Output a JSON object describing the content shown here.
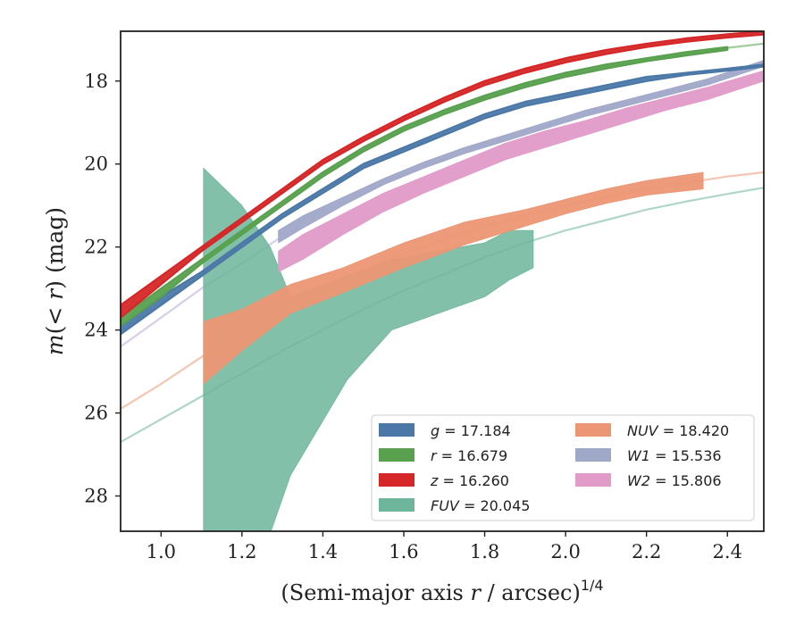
{
  "chart_data": {
    "type": "area",
    "xlabel": "(Semi-major axis r / arcsec)^1/4",
    "ylabel": "m(< r) (mag)",
    "xlim": [
      0.9,
      2.49
    ],
    "ylim": [
      28.85,
      16.8
    ],
    "y_inverted": true,
    "grid": false,
    "legend_position": "lower-right",
    "xticks": [
      "1.0",
      "1.2",
      "1.4",
      "1.6",
      "1.8",
      "2.0",
      "2.2",
      "2.4"
    ],
    "yticks": [
      "18",
      "20",
      "22",
      "24",
      "26",
      "28"
    ],
    "series": [
      {
        "name": "g",
        "label": "g = 17.184",
        "total_mag": 17.184,
        "color": "#4c78a8",
        "band_x": [
          0.9,
          1.0,
          1.1,
          1.2,
          1.3,
          1.4,
          1.5,
          1.6,
          1.7,
          1.8,
          1.9,
          2.0,
          2.1,
          2.2,
          2.3,
          2.4,
          2.49
        ],
        "band_lo": [
          23.9,
          23.2,
          22.6,
          21.9,
          21.2,
          20.6,
          20.0,
          19.6,
          19.2,
          18.8,
          18.5,
          18.3,
          18.1,
          17.9,
          17.8,
          17.7,
          17.6
        ],
        "band_hi": [
          24.1,
          23.4,
          22.7,
          22.0,
          21.3,
          20.7,
          20.1,
          19.7,
          19.3,
          18.9,
          18.6,
          18.4,
          18.2,
          18.0,
          17.85,
          17.75,
          17.65
        ],
        "faint_x": [],
        "faint_y": []
      },
      {
        "name": "r",
        "label": "r = 16.679",
        "total_mag": 16.679,
        "color": "#59a14f",
        "band_x": [
          0.9,
          1.0,
          1.1,
          1.2,
          1.3,
          1.4,
          1.5,
          1.6,
          1.7,
          1.8,
          1.9,
          2.0,
          2.1,
          2.2,
          2.3,
          2.4
        ],
        "band_lo": [
          23.7,
          23.0,
          22.3,
          21.6,
          20.9,
          20.2,
          19.6,
          19.1,
          18.7,
          18.35,
          18.05,
          17.8,
          17.6,
          17.45,
          17.3,
          17.18
        ],
        "band_hi": [
          23.9,
          23.2,
          22.4,
          21.7,
          21.0,
          20.3,
          19.7,
          19.2,
          18.8,
          18.45,
          18.15,
          17.9,
          17.7,
          17.52,
          17.38,
          17.25
        ],
        "faint_x": [
          2.4,
          2.49
        ],
        "faint_y": [
          17.2,
          17.1
        ]
      },
      {
        "name": "z",
        "label": "z = 16.260",
        "total_mag": 16.26,
        "color": "#d62728",
        "band_x": [
          0.9,
          1.0,
          1.1,
          1.2,
          1.3,
          1.4,
          1.5,
          1.6,
          1.7,
          1.8,
          1.9,
          2.0,
          2.1,
          2.2,
          2.3,
          2.4,
          2.49
        ],
        "band_lo": [
          23.4,
          22.7,
          22.0,
          21.3,
          20.6,
          19.9,
          19.35,
          18.85,
          18.4,
          18.0,
          17.7,
          17.45,
          17.25,
          17.1,
          16.97,
          16.87,
          16.8
        ],
        "band_hi": [
          23.7,
          22.9,
          22.1,
          21.4,
          20.7,
          20.0,
          19.45,
          18.95,
          18.5,
          18.1,
          17.8,
          17.55,
          17.35,
          17.18,
          17.05,
          16.95,
          16.88
        ],
        "faint_x": [],
        "faint_y": []
      },
      {
        "name": "FUV",
        "label": "FUV = 20.045",
        "total_mag": 20.045,
        "color": "#6db59b",
        "band_x": [
          1.105,
          1.2,
          1.27,
          1.32,
          1.46,
          1.57,
          1.8,
          1.86,
          1.92
        ],
        "band_lo": [
          20.1,
          21.0,
          22.0,
          23.2,
          22.7,
          22.3,
          21.9,
          21.6,
          21.6
        ],
        "band_hi": [
          28.9,
          28.9,
          28.9,
          27.5,
          25.2,
          24.0,
          23.2,
          22.8,
          22.5
        ],
        "faint_x": [
          0.9,
          1.0,
          1.1,
          1.2,
          1.3,
          1.4,
          1.5,
          1.6,
          1.7,
          1.8,
          1.9,
          2.0,
          2.1,
          2.2,
          2.3,
          2.4,
          2.49
        ],
        "faint_y": [
          26.7,
          26.15,
          25.6,
          25.05,
          24.5,
          24.0,
          23.5,
          23.05,
          22.65,
          22.25,
          21.9,
          21.6,
          21.35,
          21.1,
          20.9,
          20.72,
          20.57
        ]
      },
      {
        "name": "NUV",
        "label": "NUV = 18.420",
        "total_mag": 18.42,
        "color": "#ec9673",
        "band_x": [
          1.105,
          1.2,
          1.32,
          1.45,
          1.6,
          1.75,
          1.9,
          2.0,
          2.1,
          2.2,
          2.34
        ],
        "band_lo": [
          23.8,
          23.5,
          22.9,
          22.5,
          21.9,
          21.4,
          21.1,
          20.85,
          20.6,
          20.4,
          20.2
        ],
        "band_hi": [
          25.3,
          24.5,
          23.6,
          23.1,
          22.5,
          21.95,
          21.5,
          21.2,
          20.95,
          20.75,
          20.6
        ],
        "faint_x": [
          0.9,
          1.0,
          1.1,
          1.2,
          1.3,
          1.4,
          1.5,
          1.6,
          1.7,
          1.8,
          1.9,
          2.0,
          2.1,
          2.2,
          2.3,
          2.4,
          2.49
        ],
        "faint_y": [
          25.9,
          25.3,
          24.65,
          24.05,
          23.5,
          23.0,
          22.55,
          22.15,
          21.8,
          21.5,
          21.25,
          21.0,
          20.8,
          20.6,
          20.45,
          20.3,
          20.2
        ]
      },
      {
        "name": "W1",
        "label": "W1 = 15.536",
        "total_mag": 15.536,
        "color": "#a0a8c8",
        "band_x": [
          1.29,
          1.35,
          1.45,
          1.55,
          1.65,
          1.75,
          1.85,
          1.95,
          2.05,
          2.15,
          2.25,
          2.35,
          2.49
        ],
        "band_lo": [
          21.6,
          21.25,
          20.8,
          20.35,
          19.95,
          19.6,
          19.3,
          19.0,
          18.7,
          18.45,
          18.2,
          17.95,
          17.5
        ],
        "band_hi": [
          21.9,
          21.55,
          21.0,
          20.5,
          20.1,
          19.75,
          19.45,
          19.15,
          18.85,
          18.6,
          18.35,
          18.1,
          17.65
        ],
        "faint_x": [
          0.9,
          1.0,
          1.1,
          1.2,
          1.29
        ],
        "faint_y": [
          24.4,
          23.7,
          23.0,
          22.4,
          21.8
        ],
        "faint_color": "#b9a6d6"
      },
      {
        "name": "W2",
        "label": "W2 = 15.806",
        "total_mag": 15.806,
        "color": "#e29ac8",
        "band_x": [
          1.29,
          1.35,
          1.45,
          1.55,
          1.65,
          1.75,
          1.85,
          1.95,
          2.05,
          2.15,
          2.25,
          2.35,
          2.49
        ],
        "band_lo": [
          22.1,
          21.7,
          21.2,
          20.7,
          20.3,
          19.9,
          19.5,
          19.2,
          18.95,
          18.65,
          18.4,
          18.15,
          17.75
        ],
        "band_hi": [
          22.6,
          22.3,
          21.7,
          21.15,
          20.7,
          20.3,
          19.9,
          19.6,
          19.3,
          19.0,
          18.7,
          18.45,
          18.0
        ],
        "faint_x": [],
        "faint_y": []
      }
    ]
  }
}
